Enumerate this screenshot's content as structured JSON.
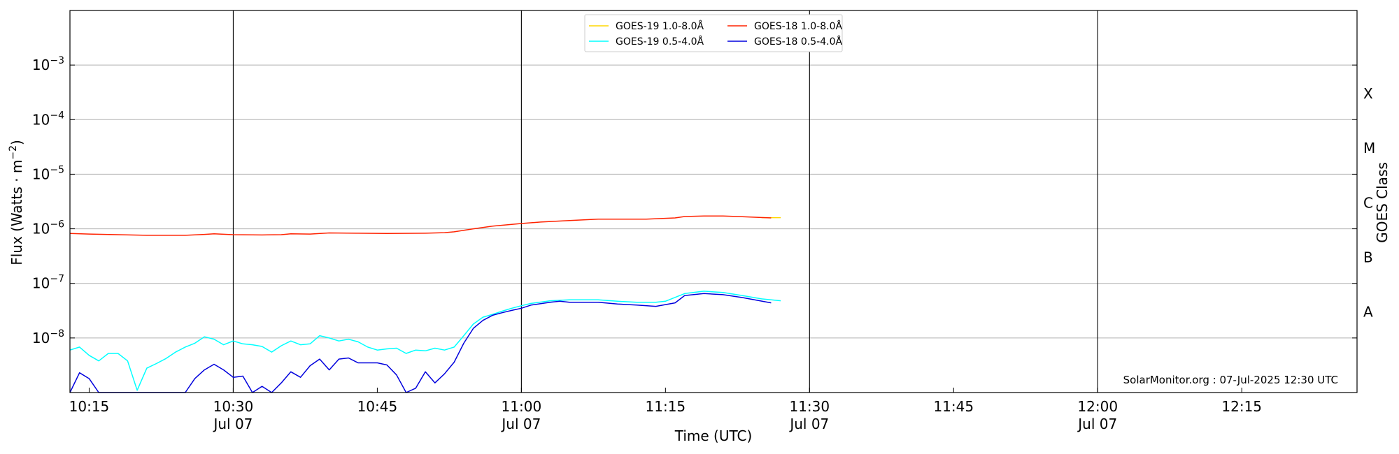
{
  "chart_data": {
    "type": "line",
    "xlabel": "Time (UTC)",
    "ylabel_main": "Flux (Watts · m",
    "ylabel_sup": "−2",
    "ylabel_close": ")",
    "right_label": "GOES Class",
    "watermark": "SolarMonitor.org : 07-Jul-2025 12:30 UTC",
    "y_scale": "log",
    "ylim": [
      1e-09,
      0.01
    ],
    "x_range_utc": [
      "10:13",
      "12:27"
    ],
    "grid": "horizontal at decades; vertical at 10:30, 11:00, 11:30, 12:00",
    "legend_placement": "top-center",
    "y_ticks": [
      {
        "value": 1e-08,
        "base": "10",
        "exp": "−8"
      },
      {
        "value": 1e-07,
        "base": "10",
        "exp": "−7"
      },
      {
        "value": 1e-06,
        "base": "10",
        "exp": "−6"
      },
      {
        "value": 1e-05,
        "base": "10",
        "exp": "−5"
      },
      {
        "value": 0.0001,
        "base": "10",
        "exp": "−4"
      },
      {
        "value": 0.001,
        "base": "10",
        "exp": "−3"
      }
    ],
    "x_ticks": [
      {
        "time": "10:15",
        "label": "10:15",
        "sub": ""
      },
      {
        "time": "10:30",
        "label": "10:30",
        "sub": "Jul 07"
      },
      {
        "time": "10:45",
        "label": "10:45",
        "sub": ""
      },
      {
        "time": "11:00",
        "label": "11:00",
        "sub": "Jul 07"
      },
      {
        "time": "11:15",
        "label": "11:15",
        "sub": ""
      },
      {
        "time": "11:30",
        "label": "11:30",
        "sub": "Jul 07"
      },
      {
        "time": "11:45",
        "label": "11:45",
        "sub": ""
      },
      {
        "time": "12:00",
        "label": "12:00",
        "sub": "Jul 07"
      },
      {
        "time": "12:15",
        "label": "12:15",
        "sub": ""
      }
    ],
    "vertical_lines": [
      "10:30",
      "11:00",
      "11:30",
      "12:00"
    ],
    "class_labels": [
      {
        "label": "X",
        "value": 0.0003
      },
      {
        "label": "M",
        "value": 3e-05
      },
      {
        "label": "C",
        "value": 3e-06
      },
      {
        "label": "B",
        "value": 3e-07
      },
      {
        "label": "A",
        "value": 3e-08
      }
    ],
    "legend_order": [
      0,
      2,
      1,
      3
    ],
    "series": [
      {
        "name": "GOES-19 1.0-8.0Å",
        "color": "#ffd700",
        "points": [
          [
            "11:25",
            1.6e-06
          ],
          [
            "11:26",
            1.6e-06
          ],
          [
            "11:27",
            1.6e-06
          ]
        ]
      },
      {
        "name": "GOES-18 1.0-8.0Å",
        "color": "#ff2200",
        "points": [
          [
            "10:13",
            8.2e-07
          ],
          [
            "10:15",
            8e-07
          ],
          [
            "10:18",
            7.8e-07
          ],
          [
            "10:21",
            7.6e-07
          ],
          [
            "10:25",
            7.6e-07
          ],
          [
            "10:27",
            7.9e-07
          ],
          [
            "10:28",
            8.1e-07
          ],
          [
            "10:30",
            7.8e-07
          ],
          [
            "10:33",
            7.7e-07
          ],
          [
            "10:35",
            7.8e-07
          ],
          [
            "10:36",
            8.1e-07
          ],
          [
            "10:38",
            8e-07
          ],
          [
            "10:40",
            8.4e-07
          ],
          [
            "10:43",
            8.3e-07
          ],
          [
            "10:46",
            8.2e-07
          ],
          [
            "10:50",
            8.3e-07
          ],
          [
            "10:52",
            8.5e-07
          ],
          [
            "10:53",
            8.8e-07
          ],
          [
            "10:55",
            1e-06
          ],
          [
            "10:57",
            1.12e-06
          ],
          [
            "11:00",
            1.25e-06
          ],
          [
            "11:02",
            1.33e-06
          ],
          [
            "11:05",
            1.42e-06
          ],
          [
            "11:08",
            1.5e-06
          ],
          [
            "11:10",
            1.5e-06
          ],
          [
            "11:13",
            1.5e-06
          ],
          [
            "11:16",
            1.58e-06
          ],
          [
            "11:17",
            1.68e-06
          ],
          [
            "11:19",
            1.72e-06
          ],
          [
            "11:21",
            1.72e-06
          ],
          [
            "11:23",
            1.67e-06
          ],
          [
            "11:26",
            1.58e-06
          ]
        ]
      },
      {
        "name": "GOES-19 0.5-4.0Å",
        "color": "#00ffff",
        "points": [
          [
            "10:13",
            6e-09
          ],
          [
            "10:14",
            6.8e-09
          ],
          [
            "10:15",
            4.8e-09
          ],
          [
            "10:16",
            3.8e-09
          ],
          [
            "10:17",
            5.2e-09
          ],
          [
            "10:18",
            5.2e-09
          ],
          [
            "10:19",
            3.8e-09
          ],
          [
            "10:20",
            1.1e-09
          ],
          [
            "10:21",
            2.8e-09
          ],
          [
            "10:22",
            3.4e-09
          ],
          [
            "10:23",
            4.2e-09
          ],
          [
            "10:24",
            5.5e-09
          ],
          [
            "10:25",
            6.8e-09
          ],
          [
            "10:26",
            8e-09
          ],
          [
            "10:27",
            1.05e-08
          ],
          [
            "10:28",
            9.5e-09
          ],
          [
            "10:29",
            7.5e-09
          ],
          [
            "10:30",
            8.8e-09
          ],
          [
            "10:31",
            7.8e-09
          ],
          [
            "10:32",
            7.5e-09
          ],
          [
            "10:33",
            7e-09
          ],
          [
            "10:34",
            5.5e-09
          ],
          [
            "10:35",
            7.2e-09
          ],
          [
            "10:36",
            8.8e-09
          ],
          [
            "10:37",
            7.5e-09
          ],
          [
            "10:38",
            7.8e-09
          ],
          [
            "10:39",
            1.1e-08
          ],
          [
            "10:40",
            1e-08
          ],
          [
            "10:41",
            8.8e-09
          ],
          [
            "10:42",
            9.5e-09
          ],
          [
            "10:43",
            8.5e-09
          ],
          [
            "10:44",
            6.8e-09
          ],
          [
            "10:45",
            6e-09
          ],
          [
            "10:46",
            6.3e-09
          ],
          [
            "10:47",
            6.5e-09
          ],
          [
            "10:48",
            5.2e-09
          ],
          [
            "10:49",
            6e-09
          ],
          [
            "10:50",
            5.8e-09
          ],
          [
            "10:51",
            6.5e-09
          ],
          [
            "10:52",
            6e-09
          ],
          [
            "10:53",
            6.8e-09
          ],
          [
            "10:54",
            1.1e-08
          ],
          [
            "10:55",
            1.8e-08
          ],
          [
            "10:56",
            2.4e-08
          ],
          [
            "10:57",
            2.7e-08
          ],
          [
            "10:58",
            3.1e-08
          ],
          [
            "10:59",
            3.5e-08
          ],
          [
            "11:00",
            3.9e-08
          ],
          [
            "11:01",
            4.3e-08
          ],
          [
            "11:03",
            4.8e-08
          ],
          [
            "11:05",
            5e-08
          ],
          [
            "11:08",
            5e-08
          ],
          [
            "11:10",
            4.7e-08
          ],
          [
            "11:12",
            4.5e-08
          ],
          [
            "11:14",
            4.5e-08
          ],
          [
            "11:15",
            4.7e-08
          ],
          [
            "11:17",
            6.5e-08
          ],
          [
            "11:19",
            7.2e-08
          ],
          [
            "11:21",
            6.8e-08
          ],
          [
            "11:23",
            6e-08
          ],
          [
            "11:25",
            5.2e-08
          ],
          [
            "11:27",
            4.8e-08
          ]
        ]
      },
      {
        "name": "GOES-18 0.5-4.0Å",
        "color": "#0000dd",
        "points": [
          [
            "10:13",
            1e-09
          ],
          [
            "10:14",
            2.3e-09
          ],
          [
            "10:15",
            1.8e-09
          ],
          [
            "10:16",
            1e-09
          ],
          [
            "10:25",
            1e-09
          ],
          [
            "10:26",
            1.8e-09
          ],
          [
            "10:27",
            2.6e-09
          ],
          [
            "10:28",
            3.3e-09
          ],
          [
            "10:29",
            2.6e-09
          ],
          [
            "10:30",
            1.9e-09
          ],
          [
            "10:31",
            2e-09
          ],
          [
            "10:32",
            1e-09
          ],
          [
            "10:33",
            1.3e-09
          ],
          [
            "10:34",
            1e-09
          ],
          [
            "10:35",
            1.5e-09
          ],
          [
            "10:36",
            2.4e-09
          ],
          [
            "10:37",
            1.9e-09
          ],
          [
            "10:38",
            3.1e-09
          ],
          [
            "10:39",
            4.1e-09
          ],
          [
            "10:40",
            2.6e-09
          ],
          [
            "10:41",
            4.1e-09
          ],
          [
            "10:42",
            4.3e-09
          ],
          [
            "10:43",
            3.5e-09
          ],
          [
            "10:45",
            3.5e-09
          ],
          [
            "10:46",
            3.2e-09
          ],
          [
            "10:47",
            2.1e-09
          ],
          [
            "10:48",
            1e-09
          ],
          [
            "10:49",
            1.2e-09
          ],
          [
            "10:50",
            2.4e-09
          ],
          [
            "10:51",
            1.5e-09
          ],
          [
            "10:52",
            2.2e-09
          ],
          [
            "10:53",
            3.6e-09
          ],
          [
            "10:54",
            8e-09
          ],
          [
            "10:55",
            1.5e-08
          ],
          [
            "10:56",
            2.1e-08
          ],
          [
            "10:57",
            2.6e-08
          ],
          [
            "10:58",
            2.9e-08
          ],
          [
            "10:59",
            3.2e-08
          ],
          [
            "11:00",
            3.5e-08
          ],
          [
            "11:01",
            4e-08
          ],
          [
            "11:03",
            4.5e-08
          ],
          [
            "11:04",
            4.7e-08
          ],
          [
            "11:05",
            4.5e-08
          ],
          [
            "11:08",
            4.5e-08
          ],
          [
            "11:10",
            4.2e-08
          ],
          [
            "11:12",
            4e-08
          ],
          [
            "11:14",
            3.8e-08
          ],
          [
            "11:16",
            4.4e-08
          ],
          [
            "11:17",
            6e-08
          ],
          [
            "11:19",
            6.5e-08
          ],
          [
            "11:21",
            6.2e-08
          ],
          [
            "11:23",
            5.5e-08
          ],
          [
            "11:26",
            4.4e-08
          ]
        ]
      }
    ]
  }
}
